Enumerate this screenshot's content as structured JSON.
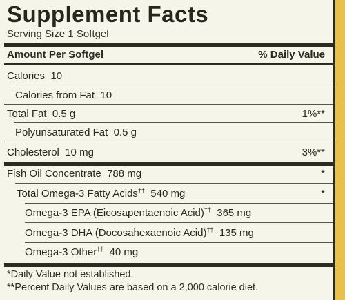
{
  "label": {
    "title": "Supplement Facts",
    "serving": "Serving Size 1 Softgel",
    "header_left": "Amount Per Softgel",
    "header_right": "% Daily Value",
    "rows": [
      {
        "name": "Calories",
        "amount": "10",
        "dv": ""
      },
      {
        "name": "Calories from Fat",
        "amount": "10",
        "dv": ""
      },
      {
        "name": "Total Fat",
        "amount": "0.5 g",
        "dv": "1%**"
      },
      {
        "name": "Polyunsaturated Fat",
        "amount": "0.5 g",
        "dv": ""
      },
      {
        "name": "Cholesterol",
        "amount": "10 mg",
        "dv": "3%**"
      },
      {
        "name": "Fish Oil Concentrate",
        "amount": "788 mg",
        "dv": "*"
      },
      {
        "name": "Total Omega-3 Fatty Acids",
        "sup": "††",
        "amount": "540 mg",
        "dv": "*"
      },
      {
        "name": "Omega-3 EPA (Eicosapentaenoic Acid)",
        "sup": "††",
        "amount": "365 mg",
        "dv": ""
      },
      {
        "name": "Omega-3 DHA (Docosahexaenoic Acid)",
        "sup": "††",
        "amount": "135 mg",
        "dv": ""
      },
      {
        "name": "Omega-3 Other",
        "sup": "††",
        "amount": "40 mg",
        "dv": ""
      }
    ],
    "footnote_1": "*Daily Value not established.",
    "footnote_2": "**Percent Daily Values are based on a 2,000 calorie diet."
  }
}
